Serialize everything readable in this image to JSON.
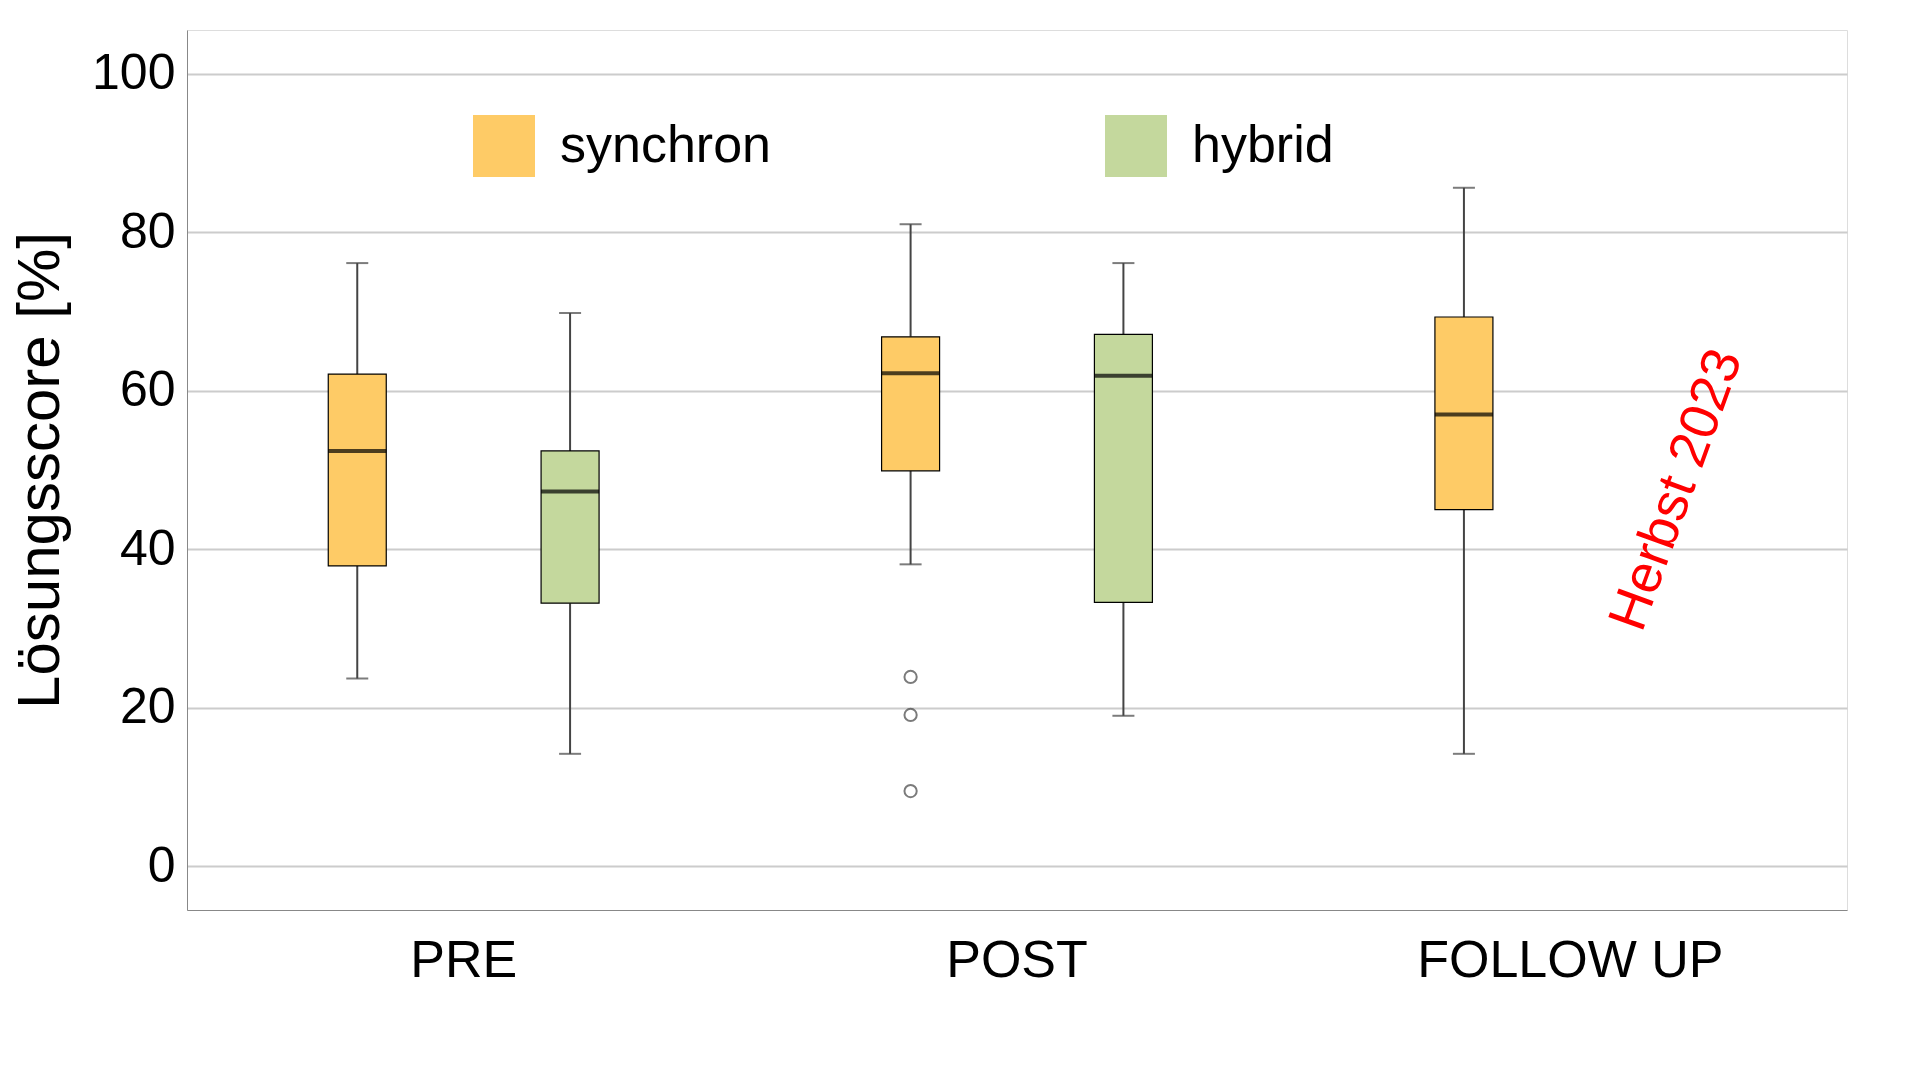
{
  "chart_data": {
    "type": "box",
    "ylabel": "Lösungsscore [%]",
    "categories": [
      "PRE",
      "POST",
      "FOLLOW UP"
    ],
    "ylim": [
      -5.5,
      105.5
    ],
    "yticks": [
      0,
      20,
      40,
      60,
      80,
      100
    ],
    "grid": "y",
    "legend": "top",
    "series": [
      {
        "name": "synchron",
        "color": "#fecb66",
        "boxes": [
          {
            "low": 23.7,
            "q1": 37.9,
            "median": 52.4,
            "q3": 62.1,
            "high": 76.1
          },
          {
            "low": 38.1,
            "q1": 49.9,
            "median": 62.2,
            "q3": 66.8,
            "high": 81.0,
            "outliers": [
              23.9,
              19.1,
              9.5
            ]
          },
          {
            "low": 14.2,
            "q1": 45.0,
            "median": 57.0,
            "q3": 69.3,
            "high": 85.6
          }
        ]
      },
      {
        "name": "hybrid",
        "color": "#c4d89d",
        "boxes": [
          {
            "low": 14.2,
            "q1": 33.2,
            "median": 47.3,
            "q3": 52.4,
            "high": 69.8
          },
          {
            "low": 19.0,
            "q1": 33.3,
            "median": 61.9,
            "q3": 67.1,
            "high": 76.1
          },
          null
        ]
      }
    ],
    "annotations": [
      "Herbst 2023"
    ]
  }
}
